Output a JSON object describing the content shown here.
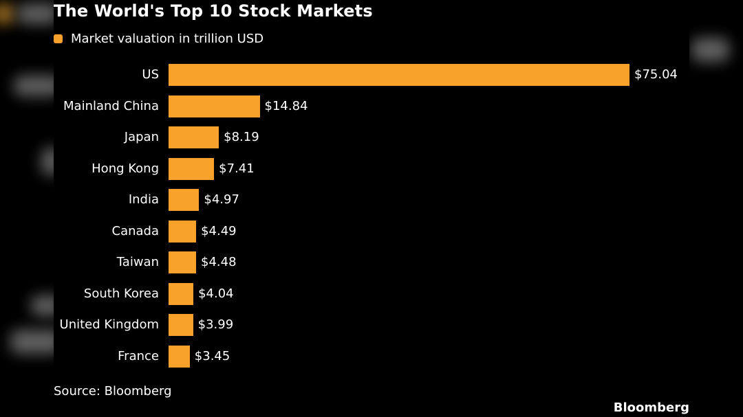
{
  "chart_data": {
    "type": "bar",
    "orientation": "horizontal",
    "title": "The World's Top 10 Stock Markets",
    "legend": [
      {
        "name": "Market valuation in trillion USD",
        "color": "#f9a22b"
      }
    ],
    "legend_placement": "top-left",
    "categories": [
      "US",
      "Mainland China",
      "Japan",
      "Hong Kong",
      "India",
      "Canada",
      "Taiwan",
      "South Korea",
      "United Kingdom",
      "France"
    ],
    "values": [
      75.04,
      14.84,
      8.19,
      7.41,
      4.97,
      4.49,
      4.48,
      4.04,
      3.99,
      3.45
    ],
    "value_labels": [
      "$75.04",
      "$14.84",
      "$8.19",
      "$7.41",
      "$4.97",
      "$4.49",
      "$4.48",
      "$4.04",
      "$3.99",
      "$3.45"
    ],
    "xlim": [
      0,
      75.04
    ],
    "grid": false,
    "bar_color": "#f9a22b"
  },
  "source": "Source: Bloomberg",
  "brand": "Bloomberg"
}
